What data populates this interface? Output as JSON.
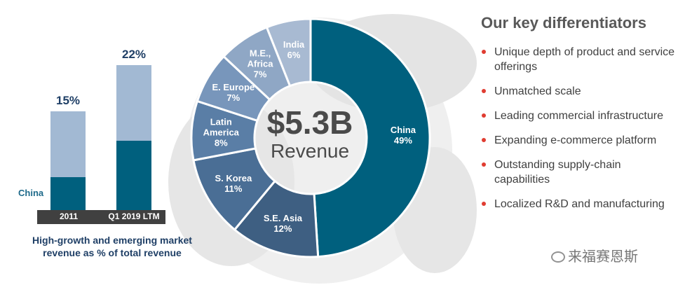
{
  "colors": {
    "china": "#00607e",
    "emerging": "#a2b9d3",
    "axis": "#404040",
    "bullet": "#e03c31"
  },
  "chart_data": [
    {
      "type": "bar",
      "stacked": true,
      "categories": [
        "2011",
        "Q1 2019 LTM"
      ],
      "series": [
        {
          "name": "China",
          "values": [
            5,
            10.5
          ]
        },
        {
          "values": [
            10,
            11.5
          ]
        }
      ],
      "totals_labels": [
        "15%",
        "22%"
      ],
      "totals": [
        15,
        22
      ],
      "series_label": "China",
      "caption": "High-growth and emerging market revenue as % of total revenue"
    },
    {
      "type": "pie",
      "donut": true,
      "center_value": "$5.3B",
      "center_label": "Revenue",
      "slices": [
        {
          "label": "China",
          "value": 49,
          "text": "49%",
          "color": "#00607e"
        },
        {
          "label": "S.E. Asia",
          "value": 12,
          "text": "12%",
          "color": "#3e5f82"
        },
        {
          "label": "S. Korea",
          "value": 11,
          "text": "11%",
          "color": "#4a6e95"
        },
        {
          "label": "Latin America",
          "value": 8,
          "text": "8%",
          "color": "#5a7ea6"
        },
        {
          "label": "E. Europe",
          "value": 7,
          "text": "7%",
          "color": "#7896bb"
        },
        {
          "label": "M.E., Africa",
          "value": 7,
          "text": "7%",
          "color": "#8fa7c5"
        },
        {
          "label": "India",
          "value": 6,
          "text": "6%",
          "color": "#a8bad2"
        }
      ]
    }
  ],
  "differentiators": {
    "title": "Our key differentiators",
    "items": [
      "Unique depth of product and service offerings",
      "Unmatched scale",
      "Leading commercial infrastructure",
      "Expanding e-commerce platform",
      "Outstanding supply-chain capabilities",
      "Localized R&D and manufacturing"
    ]
  },
  "watermark": "来福赛恩斯"
}
